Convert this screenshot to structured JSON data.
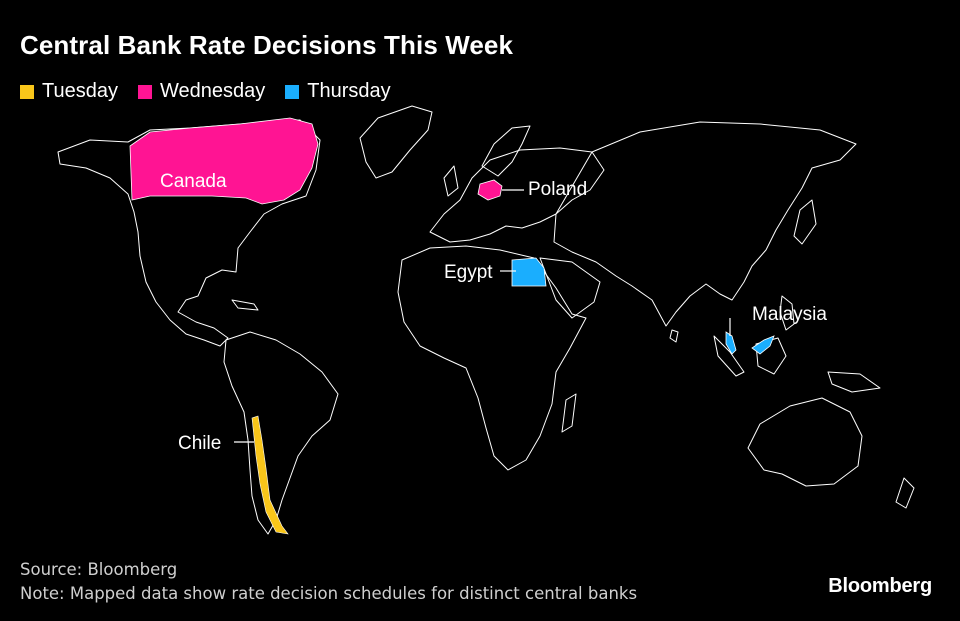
{
  "title": "Central Bank Rate Decisions This Week",
  "legend": [
    {
      "label": "Tuesday",
      "color": "#f9c61a"
    },
    {
      "label": "Wednesday",
      "color": "#ff1493"
    },
    {
      "label": "Thursday",
      "color": "#1aaefe"
    }
  ],
  "labels": {
    "canada": "Canada",
    "poland": "Poland",
    "egypt": "Egypt",
    "malaysia": "Malaysia",
    "chile": "Chile"
  },
  "footer": {
    "source": "Source: Bloomberg",
    "note": "Note: Mapped data show rate decision schedules for distinct central banks"
  },
  "brand": "Bloomberg",
  "colors": {
    "background": "#000000",
    "land_outline": "#ffffff"
  }
}
